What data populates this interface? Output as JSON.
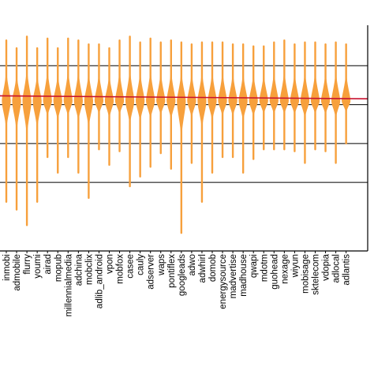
{
  "chart_data": {
    "type": "violin",
    "categories": [
      "inmobi",
      "admobile",
      "flurry",
      "youmi",
      "airad",
      "mopub",
      "millennialmedia",
      "adchina",
      "mobclix",
      "adlib_android",
      "vpon",
      "mobfox",
      "casee",
      "cauly",
      "adserver",
      "waps",
      "pontiflex",
      "googleads",
      "adwo",
      "adwhirl",
      "domob",
      "energysource",
      "madvertise",
      "madhouse",
      "qwapi",
      "mdotm",
      "guohead",
      "nexage",
      "wiyun",
      "mobisage",
      "sktelecom",
      "vdopia",
      "adlocal",
      "adlantis"
    ],
    "series": [
      {
        "values": [
          {
            "min": 0.1,
            "max": 0.93,
            "center": 0.62
          },
          {
            "min": 0.06,
            "max": 0.89,
            "center": 0.62
          },
          {
            "min": -0.02,
            "max": 0.95,
            "center": 0.62
          },
          {
            "min": 0.1,
            "max": 0.89,
            "center": 0.62
          },
          {
            "min": 0.33,
            "max": 0.94,
            "center": 0.62
          },
          {
            "min": 0.25,
            "max": 0.89,
            "center": 0.62
          },
          {
            "min": 0.33,
            "max": 0.94,
            "center": 0.62
          },
          {
            "min": 0.25,
            "max": 0.93,
            "center": 0.62
          },
          {
            "min": 0.12,
            "max": 0.91,
            "center": 0.62
          },
          {
            "min": 0.37,
            "max": 0.91,
            "center": 0.62
          },
          {
            "min": 0.29,
            "max": 0.89,
            "center": 0.62
          },
          {
            "min": 0.36,
            "max": 0.93,
            "center": 0.62
          },
          {
            "min": 0.18,
            "max": 0.95,
            "center": 0.62
          },
          {
            "min": 0.23,
            "max": 0.92,
            "center": 0.62
          },
          {
            "min": 0.28,
            "max": 0.94,
            "center": 0.62
          },
          {
            "min": 0.35,
            "max": 0.92,
            "center": 0.62
          },
          {
            "min": 0.27,
            "max": 0.93,
            "center": 0.62
          },
          {
            "min": -0.06,
            "max": 0.92,
            "center": 0.62
          },
          {
            "min": 0.3,
            "max": 0.91,
            "center": 0.62
          },
          {
            "min": 0.1,
            "max": 0.92,
            "center": 0.62
          },
          {
            "min": 0.25,
            "max": 0.92,
            "center": 0.62
          },
          {
            "min": 0.33,
            "max": 0.92,
            "center": 0.62
          },
          {
            "min": 0.33,
            "max": 0.91,
            "center": 0.62
          },
          {
            "min": 0.25,
            "max": 0.91,
            "center": 0.62
          },
          {
            "min": 0.32,
            "max": 0.9,
            "center": 0.62
          },
          {
            "min": 0.37,
            "max": 0.9,
            "center": 0.62
          },
          {
            "min": 0.37,
            "max": 0.92,
            "center": 0.62
          },
          {
            "min": 0.37,
            "max": 0.93,
            "center": 0.62
          },
          {
            "min": 0.36,
            "max": 0.91,
            "center": 0.62
          },
          {
            "min": 0.3,
            "max": 0.92,
            "center": 0.62
          },
          {
            "min": 0.37,
            "max": 0.92,
            "center": 0.62
          },
          {
            "min": 0.36,
            "max": 0.91,
            "center": 0.62
          },
          {
            "min": 0.3,
            "max": 0.92,
            "center": 0.62
          },
          {
            "min": 0.4,
            "max": 0.91,
            "center": 0.62
          }
        ]
      }
    ],
    "median_line": [
      0.645,
      0.63
    ],
    "hlines": [
      0.8,
      0.6,
      0.4,
      0.2
    ],
    "ylim": [
      -0.12,
      1.0
    ],
    "grid": true,
    "colors": {
      "violin": "#f7a03c",
      "median": "#c8102e",
      "gridline": "#000000",
      "axis": "#000000"
    }
  }
}
